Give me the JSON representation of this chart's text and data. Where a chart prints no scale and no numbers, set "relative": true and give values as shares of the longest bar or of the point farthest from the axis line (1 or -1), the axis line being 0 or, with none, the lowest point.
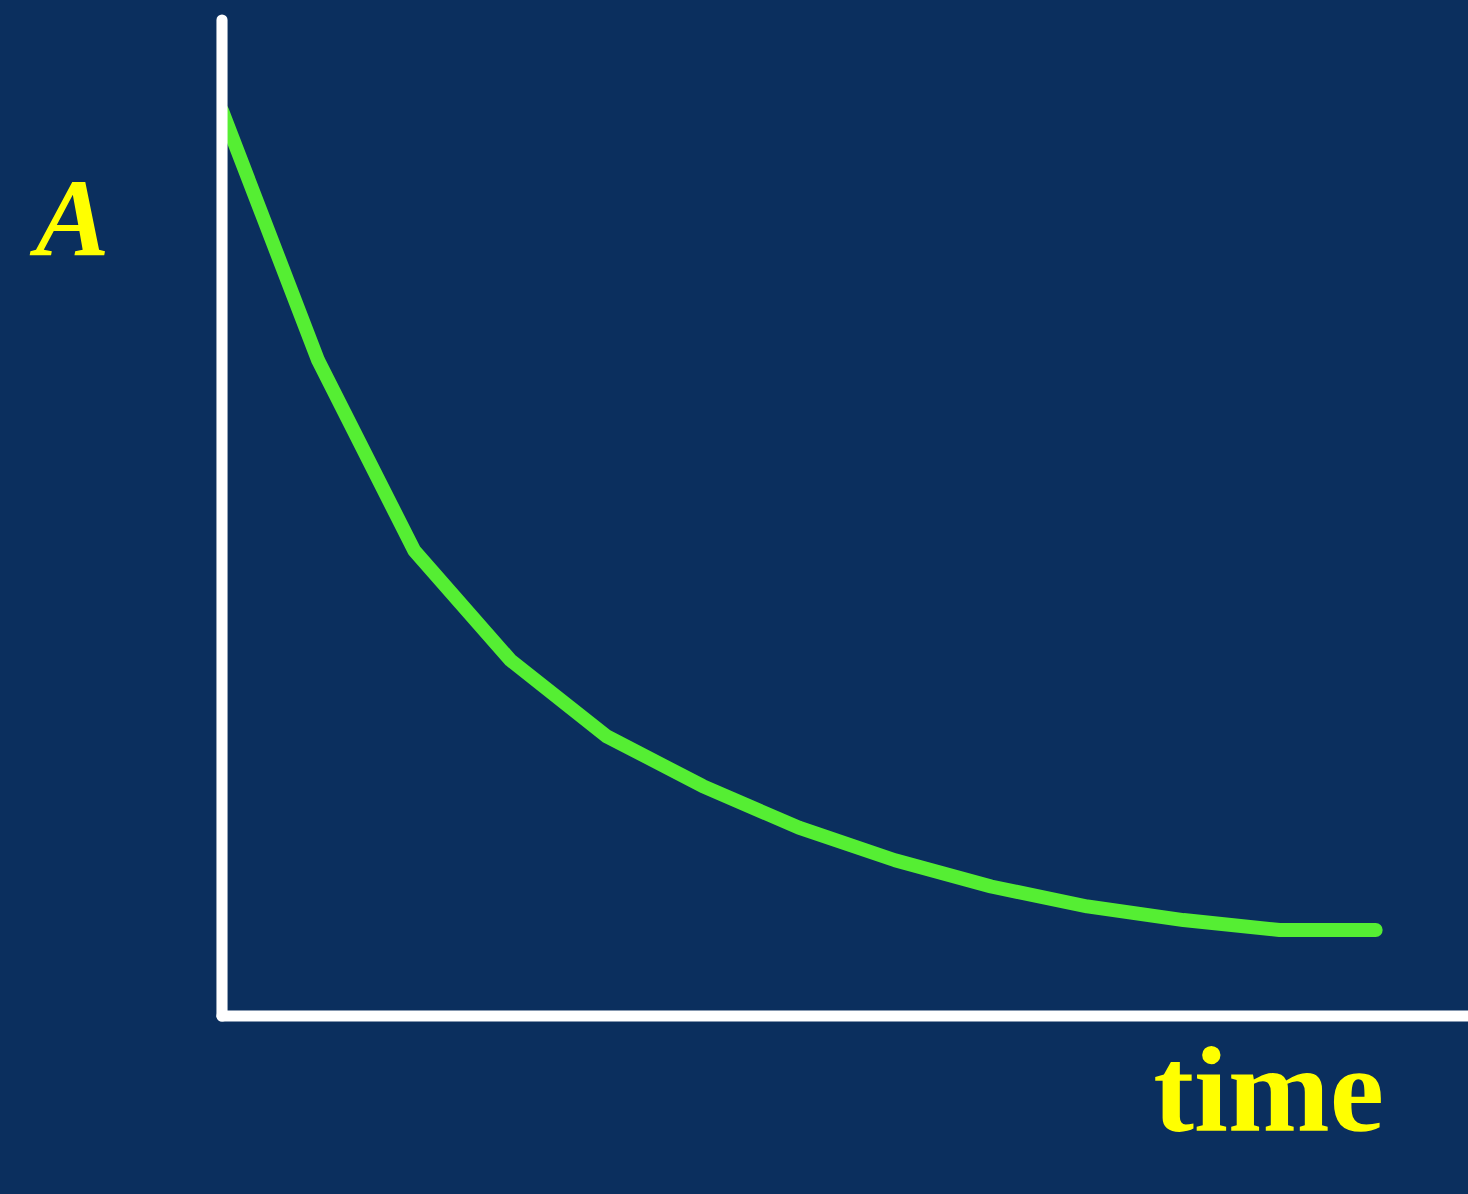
{
  "chart_data": {
    "type": "line",
    "relative": true,
    "xlabel": "time",
    "ylabel": "A",
    "categories": [
      null,
      null,
      null,
      null,
      null,
      null,
      null,
      null,
      null,
      null,
      null,
      null,
      null
    ],
    "series": [
      {
        "color": "#55ee33",
        "values": [
          1.0,
          0.724,
          0.514,
          0.393,
          0.309,
          0.254,
          0.208,
          0.172,
          0.143,
          0.121,
          0.106,
          0.095,
          0.095
        ]
      }
    ],
    "grid": false,
    "legend": false,
    "marker": "none",
    "line_style": "solid"
  }
}
